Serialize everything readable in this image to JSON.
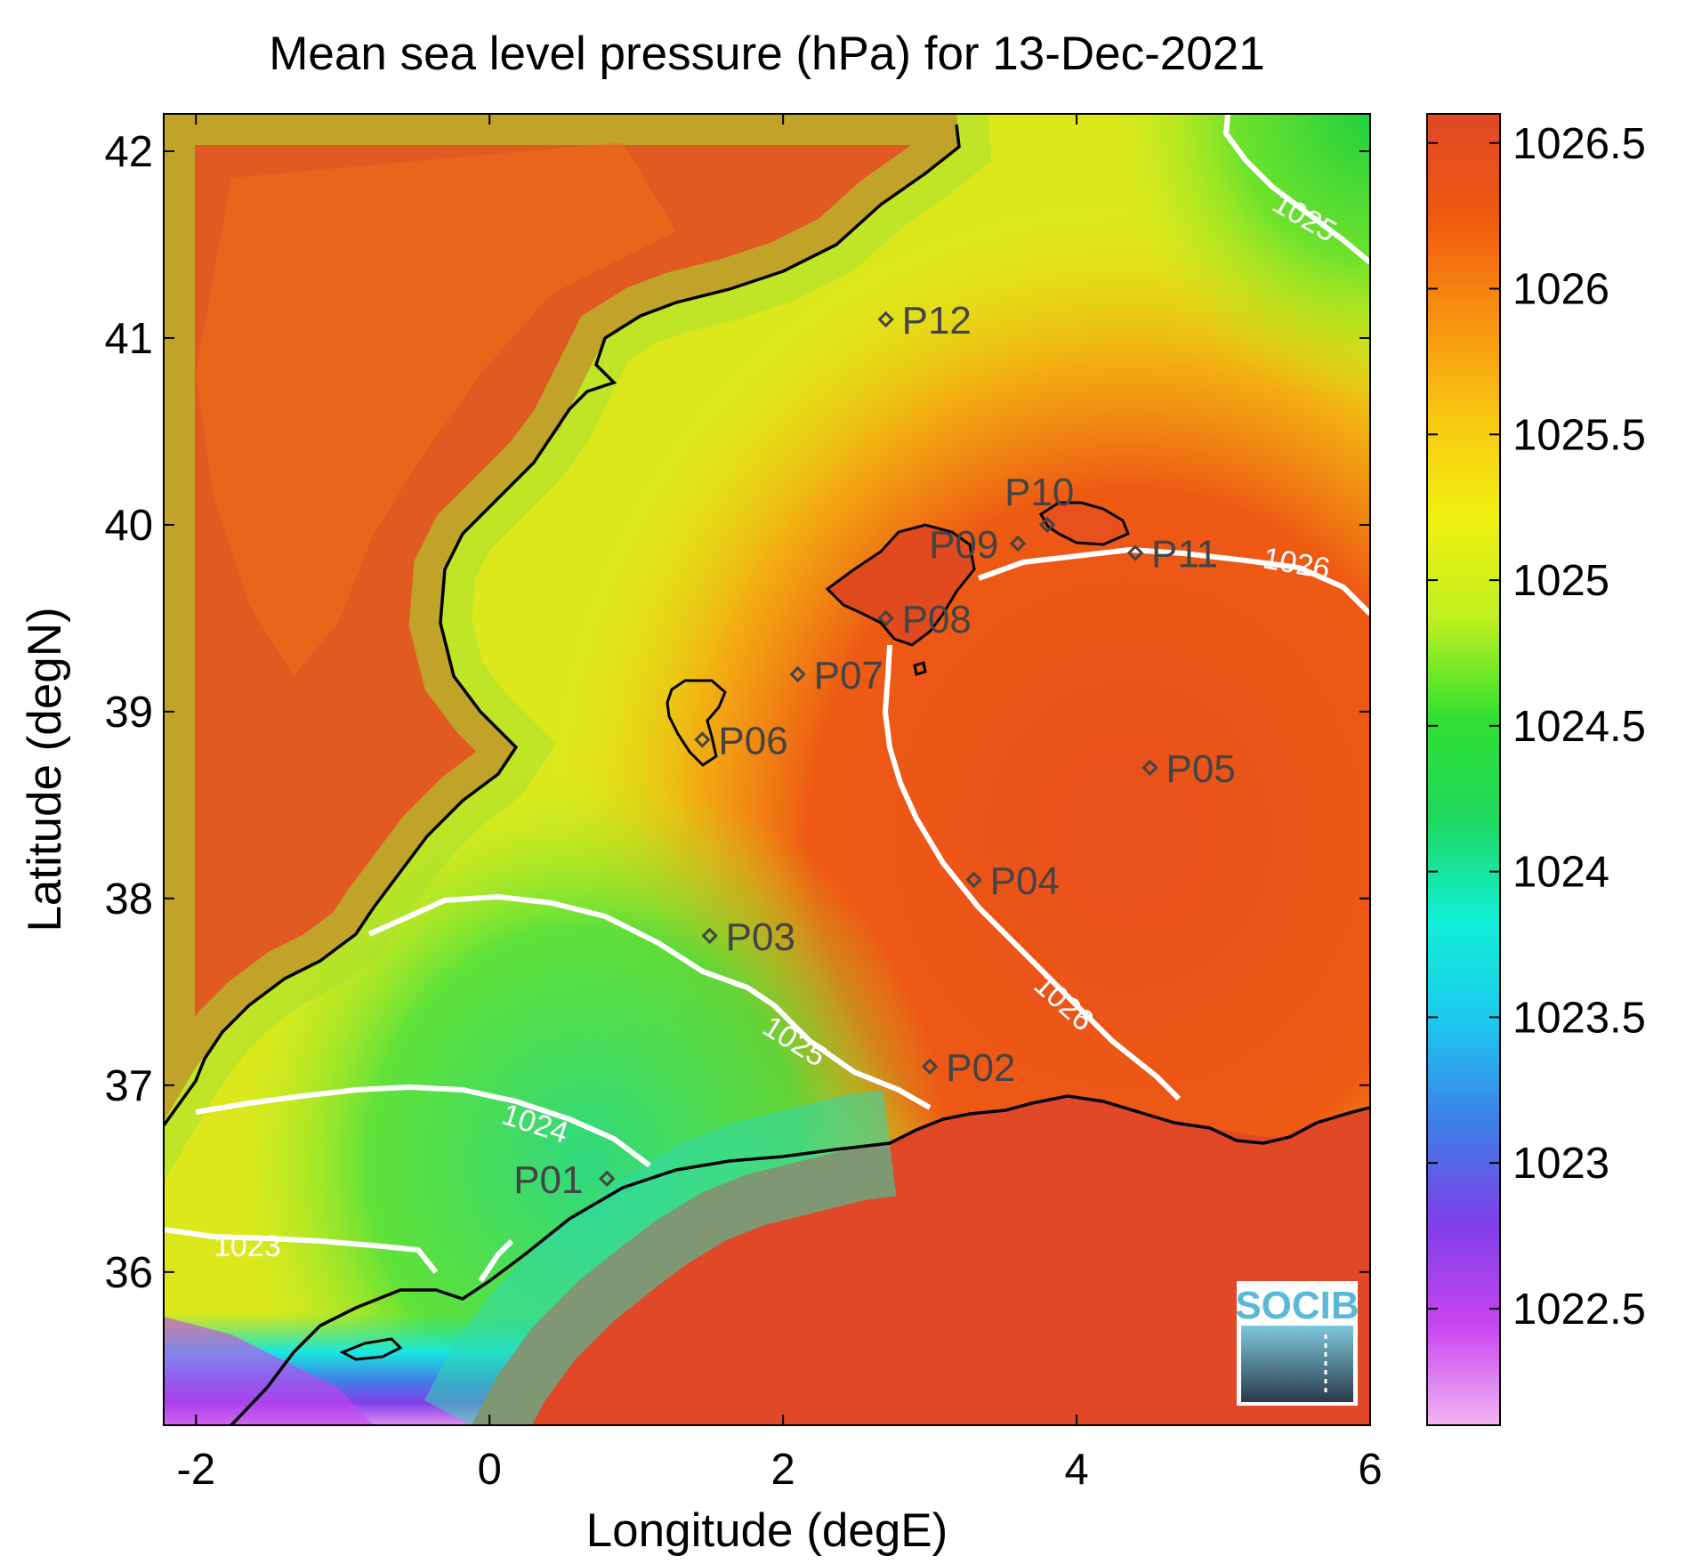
{
  "title": "Mean sea level pressure (hPa) for 13-Dec-2021",
  "xlabel": "Longitude (degE)",
  "ylabel": "Latitude (degN)",
  "x_ticks": [
    "-2",
    "0",
    "2",
    "4",
    "6"
  ],
  "y_ticks": [
    "42",
    "41",
    "40",
    "39",
    "38",
    "37",
    "36"
  ],
  "colorbar": {
    "ticks": [
      "1026.5",
      "1026",
      "1025.5",
      "1025",
      "1024.5",
      "1024",
      "1023.5",
      "1023",
      "1022.5"
    ],
    "range": [
      1022.1,
      1026.6
    ],
    "colors": [
      "#f2b6f0",
      "#c844f0",
      "#7f3fe8",
      "#3d7fe8",
      "#1ec8f0",
      "#10f0d8",
      "#1fd860",
      "#30e030",
      "#c0f020",
      "#f0f010",
      "#f8c810",
      "#f89010",
      "#f05810",
      "#e04828"
    ]
  },
  "stations": [
    {
      "id": "P01",
      "lon": 0.8,
      "lat": 36.5
    },
    {
      "id": "P02",
      "lon": 3.0,
      "lat": 37.1
    },
    {
      "id": "P03",
      "lon": 1.5,
      "lat": 37.8
    },
    {
      "id": "P04",
      "lon": 3.3,
      "lat": 38.1
    },
    {
      "id": "P05",
      "lon": 4.5,
      "lat": 38.7
    },
    {
      "id": "P06",
      "lon": 1.45,
      "lat": 38.85
    },
    {
      "id": "P07",
      "lon": 2.1,
      "lat": 39.2
    },
    {
      "id": "P08",
      "lon": 2.7,
      "lat": 39.5
    },
    {
      "id": "P09",
      "lon": 3.6,
      "lat": 39.9
    },
    {
      "id": "P10",
      "lon": 3.8,
      "lat": 40.0
    },
    {
      "id": "P11",
      "lon": 4.4,
      "lat": 39.85
    },
    {
      "id": "P12",
      "lon": 2.7,
      "lat": 41.1
    }
  ],
  "contour_labels": [
    "1023",
    "1024",
    "1025",
    "1025",
    "1026",
    "1026"
  ],
  "logo": "SOCIB"
}
